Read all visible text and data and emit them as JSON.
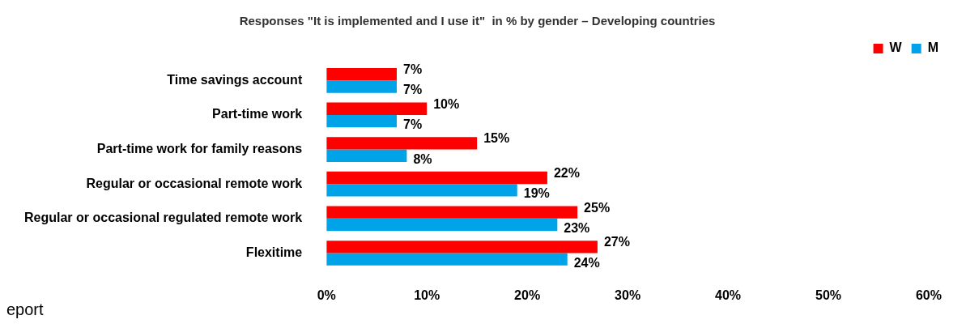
{
  "chart_data": {
    "type": "bar",
    "orientation": "horizontal",
    "title": "Responses \"It is implemented and I use it\"  in % by gender – Developing countries",
    "categories": [
      "Time savings account",
      "Part-time work",
      "Part-time work for family reasons",
      "Regular or occasional remote work",
      "Regular or occasional regulated remote work",
      "Flexitime"
    ],
    "series": [
      {
        "name": "W",
        "color": "#ff0000",
        "values": [
          7,
          10,
          15,
          22,
          25,
          27
        ],
        "value_labels": [
          "7%",
          "10%",
          "15%",
          "22%",
          "25%",
          "27%"
        ]
      },
      {
        "name": "M",
        "color": "#00a2e8",
        "values": [
          7,
          7,
          8,
          19,
          23,
          24
        ],
        "value_labels": [
          "7%",
          "7%",
          "8%",
          "19%",
          "23%",
          "24%"
        ]
      }
    ],
    "xlim": [
      0,
      60
    ],
    "xticks": [
      {
        "value": 0,
        "label": "0%"
      },
      {
        "value": 10,
        "label": "10%"
      },
      {
        "value": 20,
        "label": "20%"
      },
      {
        "value": 30,
        "label": "30%"
      },
      {
        "value": 40,
        "label": "40%"
      },
      {
        "value": 50,
        "label": "50%"
      },
      {
        "value": 60,
        "label": "60%"
      }
    ],
    "grid": false,
    "legend": "top right",
    "annotations": [
      "eport"
    ]
  }
}
